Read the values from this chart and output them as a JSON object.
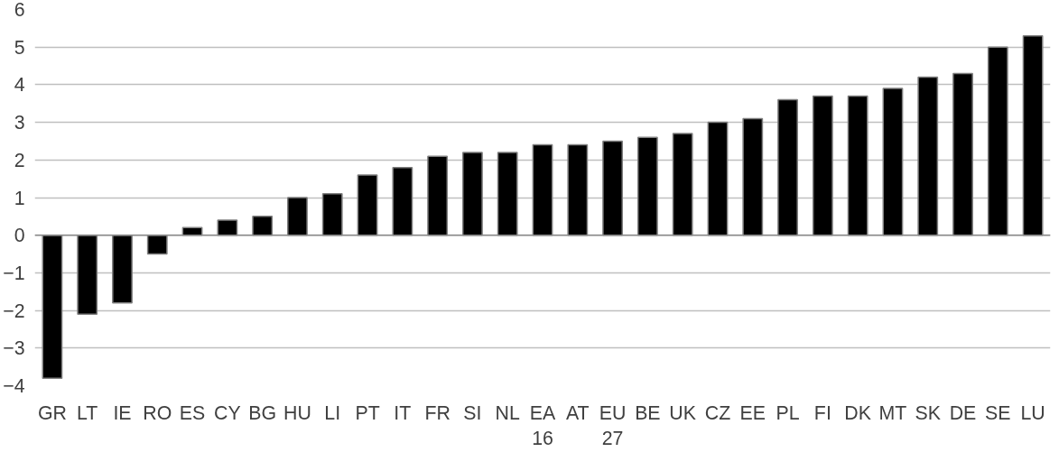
{
  "chart_data": {
    "type": "bar",
    "categories": [
      "GR",
      "LT",
      "IE",
      "RO",
      "ES",
      "CY",
      "BG",
      "HU",
      "LI",
      "PT",
      "IT",
      "FR",
      "SI",
      "NL",
      "EA 16",
      "AT",
      "EU 27",
      "BE",
      "UK",
      "CZ",
      "EE",
      "PL",
      "FI",
      "DK",
      "MT",
      "SK",
      "DE",
      "SE",
      "LU"
    ],
    "values": [
      -3.8,
      -2.1,
      -1.8,
      -0.5,
      0.2,
      0.4,
      0.5,
      1.0,
      1.1,
      1.6,
      1.8,
      2.1,
      2.2,
      2.2,
      2.4,
      2.4,
      2.5,
      2.6,
      2.7,
      3.0,
      3.1,
      3.6,
      3.7,
      3.7,
      3.9,
      4.2,
      4.3,
      5.0,
      5.3
    ],
    "color": "#000000",
    "ylim": [
      -4,
      6
    ],
    "yticks": [
      -4,
      -3,
      -2,
      -1,
      0,
      1,
      2,
      3,
      4,
      5,
      6
    ],
    "grid": "y"
  }
}
